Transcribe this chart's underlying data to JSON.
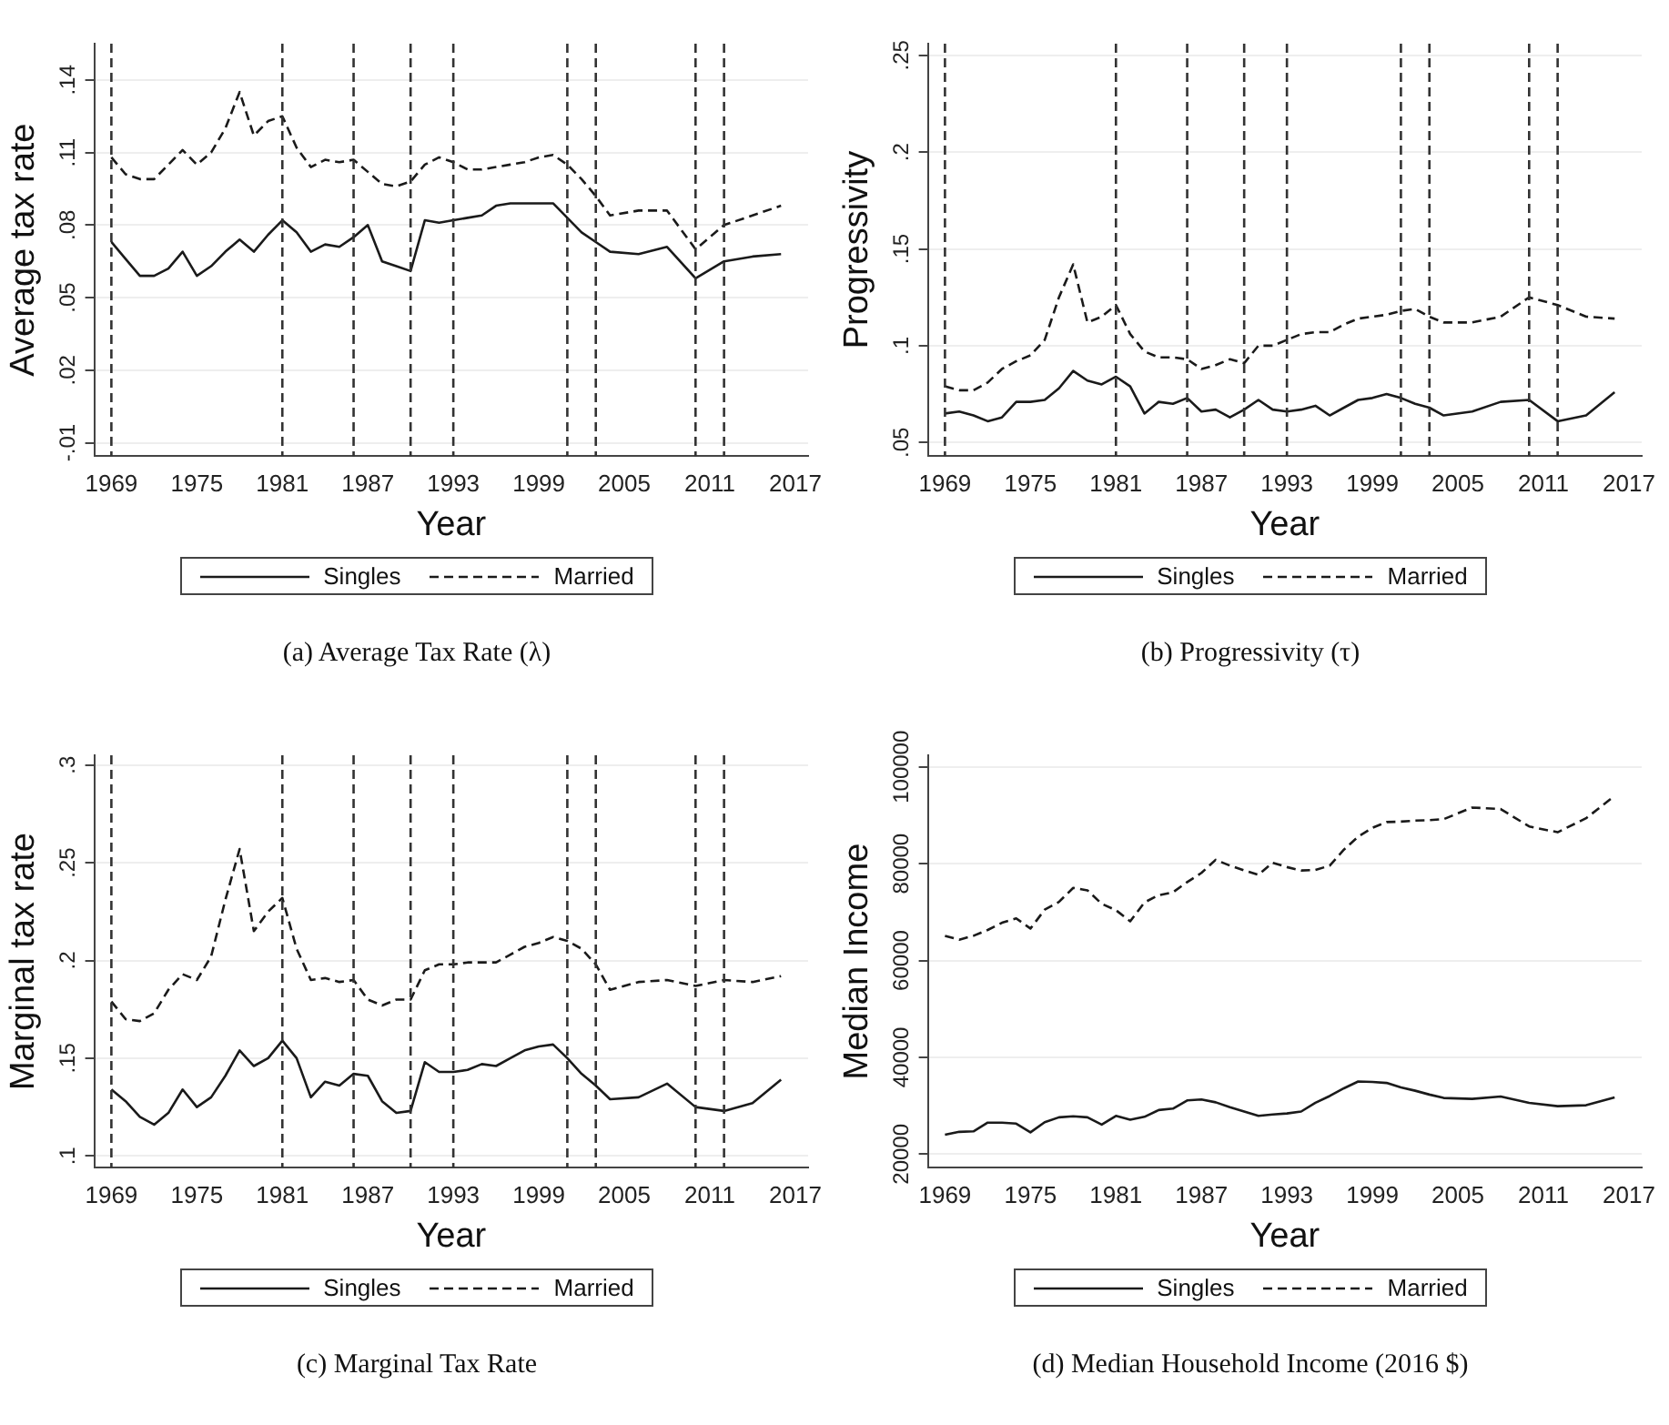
{
  "chart_data": [
    {
      "type": "line",
      "title": "(a) Average Tax Rate (λ)",
      "xlabel": "Year",
      "ylabel": "Average tax rate",
      "xlim": [
        1967.8,
        2017.9
      ],
      "xticks": [
        1969,
        1975,
        1981,
        1987,
        1993,
        1999,
        2005,
        2011,
        2017
      ],
      "ylim": [
        -0.0155,
        0.155
      ],
      "yticks": [
        {
          "value": -0.01,
          "label": "-.01"
        },
        {
          "value": 0.02,
          "label": ".02"
        },
        {
          "value": 0.05,
          "label": ".05"
        },
        {
          "value": 0.08,
          "label": ".08"
        },
        {
          "value": 0.11,
          "label": ".11"
        },
        {
          "value": 0.14,
          "label": ".14"
        }
      ],
      "grid": "y",
      "legend": "bottom",
      "marker": "none",
      "x": [
        1969,
        1970,
        1971,
        1972,
        1973,
        1974,
        1975,
        1976,
        1977,
        1978,
        1979,
        1980,
        1981,
        1982,
        1983,
        1984,
        1985,
        1986,
        1987,
        1988,
        1989,
        1990,
        1991,
        1992,
        1993,
        1994,
        1995,
        1996,
        1997,
        1998,
        1999,
        2000,
        2001,
        2002,
        2003,
        2004,
        2006,
        2008,
        2010,
        2012,
        2014,
        2016
      ],
      "series": [
        {
          "name": "Singles",
          "color": "#1a1a1a",
          "line_style": "solid",
          "values": [
            0.073,
            0.066,
            0.059,
            0.059,
            0.062,
            0.069,
            0.059,
            0.063,
            0.069,
            0.074,
            0.069,
            0.076,
            0.082,
            0.077,
            0.069,
            0.072,
            0.071,
            0.075,
            0.08,
            0.065,
            0.063,
            0.061,
            0.082,
            0.081,
            0.082,
            0.083,
            0.084,
            0.088,
            0.089,
            0.089,
            0.089,
            0.089,
            0.083,
            0.077,
            0.073,
            0.069,
            0.068,
            0.071,
            0.058,
            0.065,
            0.067,
            0.068
          ]
        },
        {
          "name": "Married",
          "color": "#1a1a1a",
          "line_style": "dashed",
          "values": [
            0.108,
            0.101,
            0.099,
            0.099,
            0.105,
            0.111,
            0.105,
            0.11,
            0.12,
            0.135,
            0.117,
            0.123,
            0.125,
            0.112,
            0.104,
            0.107,
            0.106,
            0.107,
            0.102,
            0.097,
            0.096,
            0.098,
            0.105,
            0.108,
            0.106,
            0.103,
            0.103,
            0.104,
            0.105,
            0.106,
            0.108,
            0.109,
            0.105,
            0.099,
            0.092,
            0.084,
            0.086,
            0.086,
            0.07,
            0.08,
            0.084,
            0.088
          ]
        }
      ],
      "ref_lines": [
        {
          "axis": "x",
          "value": 1969,
          "color": "#333333",
          "line_style": "dashed"
        },
        {
          "axis": "x",
          "value": 1981,
          "color": "#333333",
          "line_style": "dashed"
        },
        {
          "axis": "x",
          "value": 1986,
          "color": "#333333",
          "line_style": "dashed"
        },
        {
          "axis": "x",
          "value": 1990,
          "color": "#333333",
          "line_style": "dashed"
        },
        {
          "axis": "x",
          "value": 1993,
          "color": "#333333",
          "line_style": "dashed"
        },
        {
          "axis": "x",
          "value": 2001,
          "color": "#333333",
          "line_style": "dashed"
        },
        {
          "axis": "x",
          "value": 2003,
          "color": "#333333",
          "line_style": "dashed"
        },
        {
          "axis": "x",
          "value": 2010,
          "color": "#333333",
          "line_style": "dashed"
        },
        {
          "axis": "x",
          "value": 2012,
          "color": "#333333",
          "line_style": "dashed"
        }
      ]
    },
    {
      "type": "line",
      "title": "(b) Progressivity (τ)",
      "xlabel": "Year",
      "ylabel": "Progressivity",
      "xlim": [
        1967.8,
        2017.9
      ],
      "xticks": [
        1969,
        1975,
        1981,
        1987,
        1993,
        1999,
        2005,
        2011,
        2017
      ],
      "ylim": [
        0.043,
        0.256
      ],
      "yticks": [
        {
          "value": 0.05,
          "label": ".05"
        },
        {
          "value": 0.1,
          "label": ".1"
        },
        {
          "value": 0.15,
          "label": ".15"
        },
        {
          "value": 0.2,
          "label": ".2"
        },
        {
          "value": 0.25,
          "label": ".25"
        }
      ],
      "grid": "y",
      "legend": "bottom",
      "marker": "none",
      "x": [
        1969,
        1970,
        1971,
        1972,
        1973,
        1974,
        1975,
        1976,
        1977,
        1978,
        1979,
        1980,
        1981,
        1982,
        1983,
        1984,
        1985,
        1986,
        1987,
        1988,
        1989,
        1990,
        1991,
        1992,
        1993,
        1994,
        1995,
        1996,
        1997,
        1998,
        1999,
        2000,
        2001,
        2002,
        2003,
        2004,
        2006,
        2008,
        2010,
        2012,
        2014,
        2016
      ],
      "series": [
        {
          "name": "Singles",
          "color": "#1a1a1a",
          "line_style": "solid",
          "values": [
            0.065,
            0.066,
            0.064,
            0.061,
            0.063,
            0.071,
            0.071,
            0.072,
            0.078,
            0.087,
            0.082,
            0.08,
            0.084,
            0.079,
            0.065,
            0.071,
            0.07,
            0.073,
            0.066,
            0.067,
            0.063,
            0.067,
            0.072,
            0.067,
            0.066,
            0.067,
            0.069,
            0.064,
            0.068,
            0.072,
            0.073,
            0.075,
            0.073,
            0.07,
            0.068,
            0.064,
            0.066,
            0.071,
            0.072,
            0.061,
            0.064,
            0.076
          ]
        },
        {
          "name": "Married",
          "color": "#1a1a1a",
          "line_style": "dashed",
          "values": [
            0.079,
            0.077,
            0.077,
            0.081,
            0.088,
            0.092,
            0.095,
            0.103,
            0.125,
            0.142,
            0.112,
            0.115,
            0.121,
            0.106,
            0.097,
            0.094,
            0.094,
            0.093,
            0.088,
            0.09,
            0.093,
            0.091,
            0.1,
            0.1,
            0.103,
            0.106,
            0.107,
            0.107,
            0.111,
            0.114,
            0.115,
            0.116,
            0.118,
            0.119,
            0.115,
            0.112,
            0.112,
            0.115,
            0.125,
            0.121,
            0.115,
            0.114
          ]
        }
      ],
      "ref_lines": [
        {
          "axis": "x",
          "value": 1969,
          "color": "#333333",
          "line_style": "dashed"
        },
        {
          "axis": "x",
          "value": 1981,
          "color": "#333333",
          "line_style": "dashed"
        },
        {
          "axis": "x",
          "value": 1986,
          "color": "#333333",
          "line_style": "dashed"
        },
        {
          "axis": "x",
          "value": 1990,
          "color": "#333333",
          "line_style": "dashed"
        },
        {
          "axis": "x",
          "value": 1993,
          "color": "#333333",
          "line_style": "dashed"
        },
        {
          "axis": "x",
          "value": 2001,
          "color": "#333333",
          "line_style": "dashed"
        },
        {
          "axis": "x",
          "value": 2003,
          "color": "#333333",
          "line_style": "dashed"
        },
        {
          "axis": "x",
          "value": 2010,
          "color": "#333333",
          "line_style": "dashed"
        },
        {
          "axis": "x",
          "value": 2012,
          "color": "#333333",
          "line_style": "dashed"
        }
      ]
    },
    {
      "type": "line",
      "title": "(c) Marginal Tax Rate",
      "xlabel": "Year",
      "ylabel": "Marginal tax rate",
      "xlim": [
        1967.8,
        2017.9
      ],
      "xticks": [
        1969,
        1975,
        1981,
        1987,
        1993,
        1999,
        2005,
        2011,
        2017
      ],
      "ylim": [
        0.094,
        0.305
      ],
      "yticks": [
        {
          "value": 0.1,
          "label": ".1"
        },
        {
          "value": 0.15,
          "label": ".15"
        },
        {
          "value": 0.2,
          "label": ".2"
        },
        {
          "value": 0.25,
          "label": ".25"
        },
        {
          "value": 0.3,
          "label": ".3"
        }
      ],
      "grid": "y",
      "legend": "bottom",
      "marker": "none",
      "x": [
        1969,
        1970,
        1971,
        1972,
        1973,
        1974,
        1975,
        1976,
        1977,
        1978,
        1979,
        1980,
        1981,
        1982,
        1983,
        1984,
        1985,
        1986,
        1987,
        1988,
        1989,
        1990,
        1991,
        1992,
        1993,
        1994,
        1995,
        1996,
        1997,
        1998,
        1999,
        2000,
        2001,
        2002,
        2003,
        2004,
        2006,
        2008,
        2010,
        2012,
        2014,
        2016
      ],
      "series": [
        {
          "name": "Singles",
          "color": "#1a1a1a",
          "line_style": "solid",
          "values": [
            0.134,
            0.128,
            0.12,
            0.116,
            0.122,
            0.134,
            0.125,
            0.13,
            0.141,
            0.154,
            0.146,
            0.15,
            0.159,
            0.15,
            0.13,
            0.138,
            0.136,
            0.142,
            0.141,
            0.128,
            0.122,
            0.123,
            0.148,
            0.143,
            0.143,
            0.144,
            0.147,
            0.146,
            0.15,
            0.154,
            0.156,
            0.157,
            0.15,
            0.142,
            0.136,
            0.129,
            0.13,
            0.137,
            0.125,
            0.123,
            0.127,
            0.139
          ]
        },
        {
          "name": "Married",
          "color": "#1a1a1a",
          "line_style": "dashed",
          "values": [
            0.179,
            0.17,
            0.169,
            0.173,
            0.185,
            0.193,
            0.19,
            0.202,
            0.231,
            0.257,
            0.215,
            0.225,
            0.232,
            0.206,
            0.19,
            0.191,
            0.189,
            0.19,
            0.18,
            0.177,
            0.18,
            0.18,
            0.195,
            0.198,
            0.198,
            0.199,
            0.199,
            0.199,
            0.203,
            0.207,
            0.209,
            0.212,
            0.21,
            0.206,
            0.198,
            0.185,
            0.189,
            0.19,
            0.187,
            0.19,
            0.189,
            0.192
          ]
        }
      ],
      "ref_lines": [
        {
          "axis": "x",
          "value": 1969,
          "color": "#333333",
          "line_style": "dashed"
        },
        {
          "axis": "x",
          "value": 1981,
          "color": "#333333",
          "line_style": "dashed"
        },
        {
          "axis": "x",
          "value": 1986,
          "color": "#333333",
          "line_style": "dashed"
        },
        {
          "axis": "x",
          "value": 1990,
          "color": "#333333",
          "line_style": "dashed"
        },
        {
          "axis": "x",
          "value": 1993,
          "color": "#333333",
          "line_style": "dashed"
        },
        {
          "axis": "x",
          "value": 2001,
          "color": "#333333",
          "line_style": "dashed"
        },
        {
          "axis": "x",
          "value": 2003,
          "color": "#333333",
          "line_style": "dashed"
        },
        {
          "axis": "x",
          "value": 2010,
          "color": "#333333",
          "line_style": "dashed"
        },
        {
          "axis": "x",
          "value": 2012,
          "color": "#333333",
          "line_style": "dashed"
        }
      ]
    },
    {
      "type": "line",
      "title": "(d) Median Household Income (2016 $)",
      "xlabel": "Year",
      "ylabel": "Median Income",
      "xlim": [
        1967.8,
        2017.9
      ],
      "xticks": [
        1969,
        1975,
        1981,
        1987,
        1993,
        1999,
        2005,
        2011,
        2017
      ],
      "ylim": [
        17200,
        102400
      ],
      "yticks": [
        20000,
        40000,
        60000,
        80000,
        100000
      ],
      "grid": "y",
      "legend": "bottom",
      "marker": "none",
      "x": [
        1969,
        1970,
        1971,
        1972,
        1973,
        1974,
        1975,
        1976,
        1977,
        1978,
        1979,
        1980,
        1981,
        1982,
        1983,
        1984,
        1985,
        1986,
        1987,
        1988,
        1989,
        1990,
        1991,
        1992,
        1993,
        1994,
        1995,
        1996,
        1997,
        1998,
        1999,
        2000,
        2001,
        2002,
        2003,
        2004,
        2006,
        2008,
        2010,
        2012,
        2014,
        2016
      ],
      "series": [
        {
          "name": "Singles",
          "color": "#1a1a1a",
          "line_style": "solid",
          "values": [
            24000,
            24600,
            24700,
            26500,
            26500,
            26300,
            24500,
            26600,
            27600,
            27800,
            27600,
            26100,
            27900,
            27100,
            27700,
            29100,
            29400,
            31100,
            31300,
            30700,
            29700,
            28800,
            27900,
            28200,
            28400,
            28800,
            30600,
            32000,
            33600,
            35000,
            34900,
            34700,
            33800,
            33100,
            32300,
            31600,
            31400,
            31900,
            30600,
            29900,
            30100,
            31700
          ]
        },
        {
          "name": "Married",
          "color": "#1a1a1a",
          "line_style": "dashed",
          "values": [
            65100,
            64300,
            65100,
            66300,
            67800,
            68700,
            66600,
            70500,
            72100,
            75000,
            74500,
            71700,
            70400,
            68100,
            72000,
            73500,
            74100,
            76200,
            78100,
            80800,
            79600,
            78600,
            77700,
            80200,
            79300,
            78600,
            78700,
            79600,
            82900,
            85600,
            87400,
            88600,
            88700,
            88900,
            89000,
            89200,
            91600,
            91300,
            87700,
            86500,
            89400,
            94000
          ]
        }
      ]
    }
  ]
}
